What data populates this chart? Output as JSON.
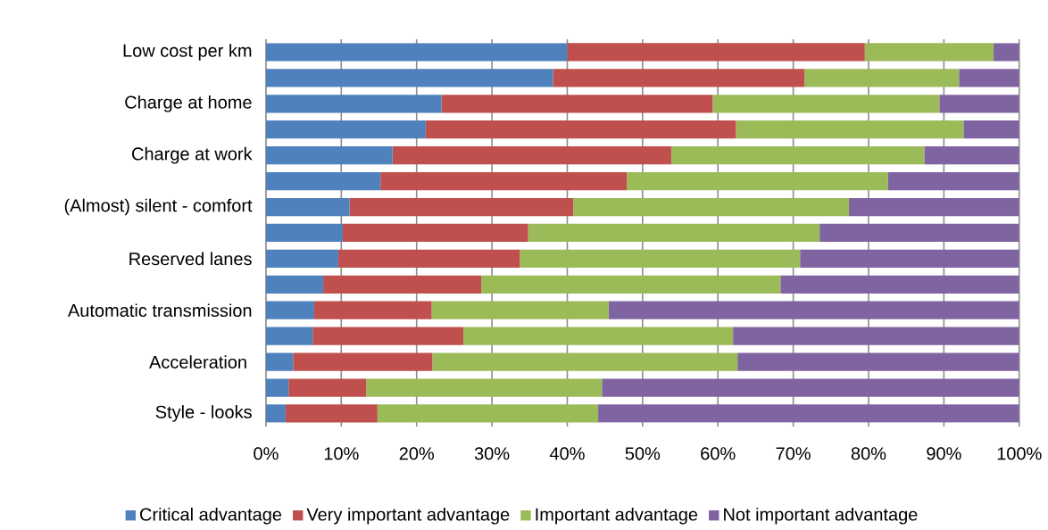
{
  "chart_data": {
    "type": "bar",
    "orientation": "horizontal",
    "stacked": true,
    "grid": "x",
    "legend": "bottom",
    "categories": [
      "Low cost per km",
      null,
      "Charge at home",
      null,
      "Charge at work",
      null,
      "(Almost) silent - comfort",
      null,
      "Reserved lanes",
      null,
      "Automatic transmission",
      null,
      "Acceleration ",
      null,
      "Style - looks"
    ],
    "series": [
      {
        "name": "Critical advantage",
        "color": "#4f81bd",
        "values": [
          40,
          38.1,
          23.3,
          21.2,
          16.8,
          15.2,
          11.1,
          10.2,
          9.6,
          7.6,
          6.4,
          6.2,
          3.6,
          3.0,
          2.6
        ]
      },
      {
        "name": "Very important advantage",
        "color": "#c0504d",
        "values": [
          39.5,
          33.4,
          36.0,
          41.2,
          37.0,
          32.7,
          29.7,
          24.6,
          24.1,
          21.0,
          15.6,
          20.0,
          18.5,
          10.3,
          12.2
        ]
      },
      {
        "name": "Important advantage",
        "color": "#9bbb59",
        "values": [
          17.1,
          20.5,
          30.1,
          30.2,
          33.6,
          34.7,
          36.6,
          38.7,
          37.2,
          39.7,
          23.5,
          35.8,
          40.5,
          31.3,
          29.3
        ]
      },
      {
        "name": "Not important advantage",
        "color": "#8064a2",
        "values": [
          3.4,
          8.0,
          10.6,
          7.4,
          12.6,
          17.4,
          22.6,
          26.5,
          29.1,
          31.7,
          54.5,
          38.0,
          37.4,
          55.4,
          55.9
        ]
      }
    ],
    "xlim": [
      0,
      100
    ],
    "xticks": [
      {
        "value": 0,
        "label": "0%"
      },
      {
        "value": 10,
        "label": "10%"
      },
      {
        "value": 20,
        "label": "20%"
      },
      {
        "value": 30,
        "label": "30%"
      },
      {
        "value": 40,
        "label": "40%"
      },
      {
        "value": 50,
        "label": "50%"
      },
      {
        "value": 60,
        "label": "60%"
      },
      {
        "value": 70,
        "label": "70%"
      },
      {
        "value": 80,
        "label": "80%"
      },
      {
        "value": 90,
        "label": "90%"
      },
      {
        "value": 100,
        "label": "100%"
      }
    ]
  }
}
